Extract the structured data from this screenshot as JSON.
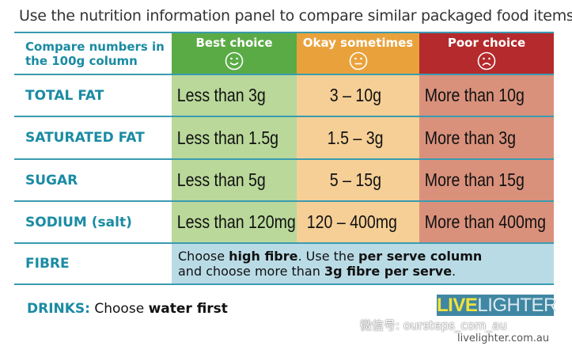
{
  "title": "Use the nutrition information panel to compare similar packaged food items",
  "header": {
    "label": "Compare numbers in the 100g column",
    "best": "Best choice",
    "okay": "Okay sometimes",
    "poor": "Poor choice"
  },
  "rows": [
    {
      "label": "TOTAL FAT",
      "best": "Less than 3g",
      "okay": "3 – 10g",
      "poor": "More than 10g"
    },
    {
      "label": "SATURATED FAT",
      "best": "Less than 1.5g",
      "okay": "1.5 – 3g",
      "poor": "More than 3g"
    },
    {
      "label": "SUGAR",
      "best": "Less than 5g",
      "okay": "5 – 15g",
      "poor": "More than 15g"
    },
    {
      "label": "SODIUM (salt)",
      "best": "Less than 120mg",
      "okay": "120 – 400mg",
      "poor": "More than 400mg"
    }
  ],
  "fibre": {
    "label": "FIBRE",
    "t1": "Choose ",
    "b1": "high fibre",
    "t2": ". Use the ",
    "b2": "per serve column",
    "t3": " and choose more than ",
    "b3": "3g fibre per serve",
    "t4": "."
  },
  "drinks": {
    "label": "DRINKS:",
    "t1": " Choose ",
    "b1": "water first"
  },
  "logo": {
    "live": "LIVE",
    "lighter": "LIGHTER",
    "url": "livelighter.com.au"
  },
  "watermark": "微信号: oursteps_com_au",
  "colors": {
    "best": "#5aab46",
    "okay": "#e9a23b",
    "poor": "#b52a2c",
    "label": "#1a8ba3"
  },
  "icons": {
    "best": "smiley-face",
    "okay": "neutral-face",
    "poor": "sad-face"
  }
}
